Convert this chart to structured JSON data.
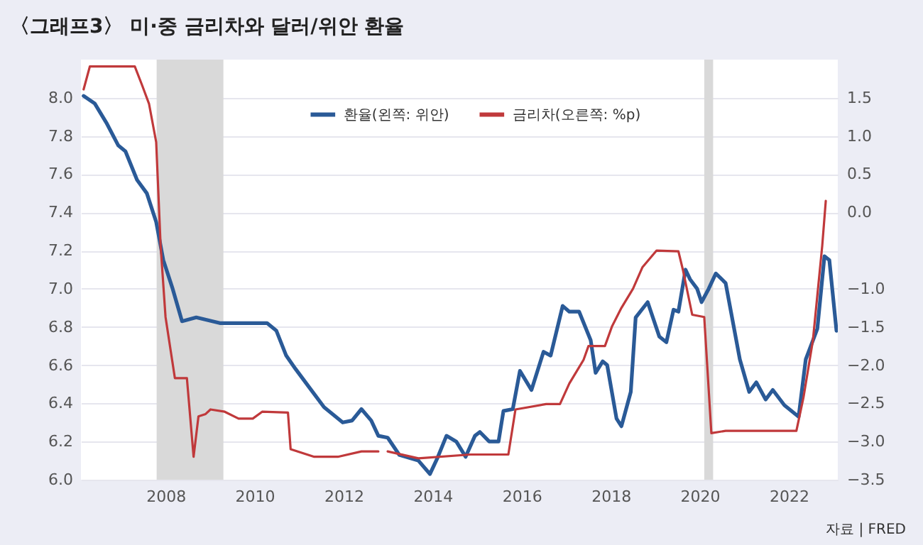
{
  "chart_data": {
    "type": "line",
    "title": "〈그래프3〉 미·중 금리차와 달러/위안 환율",
    "annotations": [
      "자료 | FRED"
    ],
    "xlim": [
      2006.1,
      2023.1
    ],
    "xticks": [
      2008,
      2010,
      2012,
      2014,
      2016,
      2018,
      2020,
      2022
    ],
    "ylim": [
      6.0,
      8.2
    ],
    "yticks": [
      {
        "value": 6.0,
        "label": "6.0"
      },
      {
        "value": 6.2,
        "label": "6.2"
      },
      {
        "value": 6.4,
        "label": "6.4"
      },
      {
        "value": 6.6,
        "label": "6.6"
      },
      {
        "value": 6.8,
        "label": "6.8"
      },
      {
        "value": 7.0,
        "label": "7.0"
      },
      {
        "value": 7.2,
        "label": "7.2"
      },
      {
        "value": 7.4,
        "label": "7.4"
      },
      {
        "value": 7.6,
        "label": "7.6"
      },
      {
        "value": 7.8,
        "label": "7.8"
      },
      {
        "value": 8.0,
        "label": "8.0"
      }
    ],
    "y2lim": [
      -3.5,
      2.0
    ],
    "y2ticks": [
      {
        "value": -3.5,
        "label": "−3.5"
      },
      {
        "value": -3.0,
        "label": "−3.0"
      },
      {
        "value": -2.5,
        "label": "−2.5"
      },
      {
        "value": -2.0,
        "label": "−2.0"
      },
      {
        "value": -1.5,
        "label": "−1.5"
      },
      {
        "value": -1.0,
        "label": "−1.0"
      },
      {
        "value": 0.0,
        "label": "0.0"
      },
      {
        "value": 0.5,
        "label": "0.5"
      },
      {
        "value": 1.0,
        "label": "1.0"
      },
      {
        "value": 1.5,
        "label": "1.5"
      }
    ],
    "grid": "y",
    "legend": "top",
    "bands": [
      {
        "axis": "x",
        "from": 2007.8,
        "to": 2009.3,
        "color": "#d9d9d9"
      },
      {
        "axis": "x",
        "from": 2020.1,
        "to": 2020.3,
        "color": "#d9d9d9"
      }
    ],
    "series": [
      {
        "name": "환율(왼쪽: 위안)",
        "color": "#2a5a97",
        "axis": "y",
        "x": [
          2006.16,
          2006.41,
          2006.67,
          2006.94,
          2007.1,
          2007.36,
          2007.58,
          2007.79,
          2007.95,
          2008.16,
          2008.37,
          2008.69,
          2009.22,
          2010.28,
          2010.49,
          2010.71,
          2010.92,
          2011.24,
          2011.56,
          2011.98,
          2012.19,
          2012.4,
          2012.62,
          2012.78,
          2012.99,
          2013.25,
          2013.68,
          2013.94,
          2014.1,
          2014.31,
          2014.53,
          2014.74,
          2014.95,
          2015.06,
          2015.27,
          2015.48,
          2015.59,
          2015.8,
          2015.96,
          2016.22,
          2016.49,
          2016.65,
          2016.92,
          2017.07,
          2017.29,
          2017.55,
          2017.66,
          2017.82,
          2017.92,
          2018.13,
          2018.24,
          2018.45,
          2018.56,
          2018.83,
          2019.09,
          2019.25,
          2019.41,
          2019.52,
          2019.68,
          2019.78,
          2019.94,
          2020.04,
          2020.2,
          2020.36,
          2020.58,
          2020.9,
          2021.11,
          2021.27,
          2021.48,
          2021.64,
          2021.9,
          2022.22,
          2022.38,
          2022.64,
          2022.8,
          2022.91,
          2023.07
        ],
        "values": [
          8.01,
          7.97,
          7.87,
          7.75,
          7.72,
          7.57,
          7.5,
          7.35,
          7.15,
          7.0,
          6.83,
          6.85,
          6.82,
          6.82,
          6.78,
          6.65,
          6.58,
          6.48,
          6.38,
          6.3,
          6.31,
          6.37,
          6.31,
          6.23,
          6.22,
          6.13,
          6.1,
          6.03,
          6.11,
          6.23,
          6.2,
          6.12,
          6.23,
          6.25,
          6.2,
          6.2,
          6.36,
          6.37,
          6.57,
          6.47,
          6.67,
          6.65,
          6.91,
          6.88,
          6.88,
          6.73,
          6.56,
          6.62,
          6.6,
          6.32,
          6.28,
          6.46,
          6.85,
          6.93,
          6.75,
          6.72,
          6.89,
          6.88,
          7.1,
          7.05,
          7.0,
          6.93,
          7.0,
          7.08,
          7.03,
          6.63,
          6.46,
          6.51,
          6.42,
          6.47,
          6.39,
          6.33,
          6.63,
          6.79,
          7.17,
          7.15,
          6.78
        ]
      },
      {
        "name": "금리차(오른쪽: %p)",
        "color": "#c0393b",
        "axis": "y2",
        "x": [
          2006.16,
          2006.3,
          2007.31,
          2007.47,
          2007.63,
          2007.79,
          2007.89,
          2008.0,
          2008.21,
          2008.48,
          2008.63,
          2008.74,
          2008.9,
          2009.01,
          2009.33,
          2009.64,
          2009.96,
          2010.17,
          2010.75,
          2010.81,
          2011.34,
          2011.87,
          2012.4,
          2012.78,
          2012.88,
          2012.99,
          2013.68,
          2014.85,
          2015.7,
          2015.86,
          2016.55,
          2016.86,
          2017.07,
          2017.39,
          2017.5,
          2017.87,
          2018.03,
          2018.24,
          2018.5,
          2018.71,
          2019.03,
          2019.52,
          2019.62,
          2019.83,
          2020.1,
          2020.26,
          2020.58,
          2021.54,
          2022.17,
          2022.33,
          2022.54,
          2022.75,
          2022.83
        ],
        "values": [
          1.61,
          1.91,
          1.91,
          1.67,
          1.42,
          0.92,
          -0.44,
          -1.37,
          -2.17,
          -2.17,
          -3.2,
          -2.67,
          -2.64,
          -2.58,
          -2.61,
          -2.7,
          -2.7,
          -2.61,
          -2.62,
          -3.1,
          -3.2,
          -3.2,
          -3.13,
          -3.13,
          null,
          -3.13,
          -3.22,
          -3.17,
          -3.17,
          -2.58,
          -2.51,
          -2.51,
          -2.24,
          -1.93,
          -1.75,
          -1.75,
          -1.49,
          -1.25,
          -1.0,
          -0.72,
          -0.5,
          -0.51,
          -0.75,
          -1.34,
          -1.37,
          -2.89,
          -2.86,
          -2.86,
          -2.86,
          -2.42,
          -1.68,
          -0.44,
          0.15
        ]
      }
    ]
  }
}
